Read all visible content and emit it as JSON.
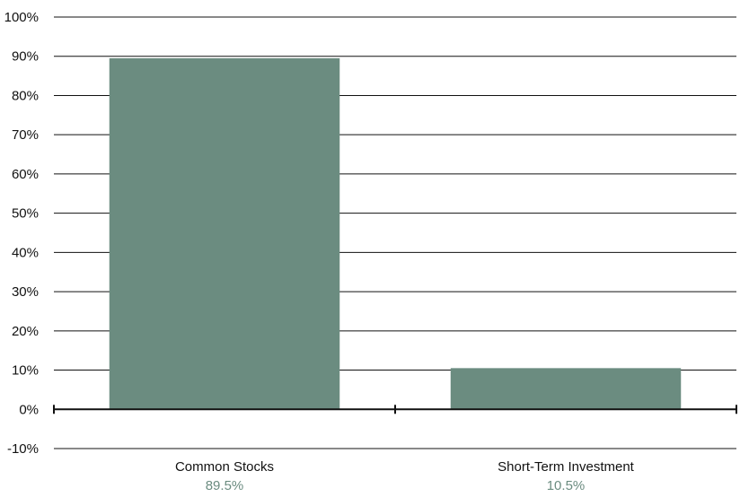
{
  "chart_data": {
    "type": "bar",
    "categories": [
      "Common Stocks",
      "Short-Term Investment"
    ],
    "values": [
      89.5,
      10.5
    ],
    "value_labels": [
      "89.5%",
      "10.5%"
    ],
    "ylim": [
      -10,
      100
    ],
    "yticks": [
      100,
      90,
      80,
      70,
      60,
      50,
      40,
      30,
      20,
      10,
      0,
      -10
    ],
    "ytick_labels": [
      "100%",
      "90%",
      "80%",
      "70%",
      "60%",
      "50%",
      "40%",
      "30%",
      "20%",
      "10%",
      "0%",
      "-10%"
    ],
    "grid": true,
    "title": "",
    "xlabel": "",
    "ylabel": "",
    "colors": {
      "bar": "#6b8c80",
      "value_label": "#6b8c80",
      "grid": "#111111",
      "text": "#111111"
    }
  }
}
